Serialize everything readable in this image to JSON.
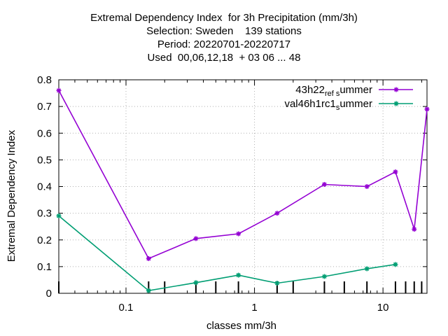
{
  "title_lines": [
    "Extremal Dependency Index  for 3h Precipitation (mm/3h)",
    "Selection: Sweden    139 stations",
    "Period: 20220701-20220717",
    "Used  00,06,12,18  + 03 06 ... 48"
  ],
  "chart_data": {
    "type": "line",
    "xlabel": "classes mm/3h",
    "ylabel": "Extremal Dependency Index",
    "xscale": "log",
    "xlim": [
      0.03,
      22
    ],
    "ylim": [
      0,
      0.8
    ],
    "xticks": [
      {
        "value": 0.1,
        "label": "0.1"
      },
      {
        "value": 1,
        "label": "1"
      },
      {
        "value": 10,
        "label": "10"
      }
    ],
    "yticks": [
      {
        "value": 0,
        "label": "0"
      },
      {
        "value": 0.1,
        "label": "0.1"
      },
      {
        "value": 0.2,
        "label": "0.2"
      },
      {
        "value": 0.3,
        "label": "0.3"
      },
      {
        "value": 0.4,
        "label": "0.4"
      },
      {
        "value": 0.5,
        "label": "0.5"
      },
      {
        "value": 0.6,
        "label": "0.6"
      },
      {
        "value": 0.7,
        "label": "0.7"
      },
      {
        "value": 0.8,
        "label": "0.8"
      }
    ],
    "class_marks": [
      0.03,
      0.15,
      0.2,
      0.35,
      0.5,
      0.75,
      1.5,
      2,
      3.5,
      5,
      7.5,
      12.5,
      15,
      17.5,
      20
    ],
    "grid": true,
    "legend_position": "top-right",
    "series": [
      {
        "name": "43h22_ref_summer",
        "legend_main": "43h22",
        "legend_parts": [
          {
            "text": "ref",
            "sub": true
          },
          {
            "text": "s",
            "sub": true
          },
          {
            "text": "ummer",
            "sub": false
          }
        ],
        "color": "#9400d3",
        "x": [
          0.03,
          0.15,
          0.35,
          0.75,
          1.5,
          3.5,
          7.5,
          12.5,
          17.5,
          22
        ],
        "y": [
          0.76,
          0.13,
          0.205,
          0.223,
          0.3,
          0.408,
          0.4,
          0.455,
          0.24,
          0.69
        ]
      },
      {
        "name": "val46h1rc1_summer",
        "legend_main": "val46h1rc1",
        "legend_parts": [
          {
            "text": "s",
            "sub": true
          },
          {
            "text": "ummer",
            "sub": false
          }
        ],
        "color": "#009e73",
        "x": [
          0.03,
          0.15,
          0.35,
          0.75,
          1.5,
          3.5,
          7.5,
          12.5
        ],
        "y": [
          0.29,
          0.01,
          0.04,
          0.068,
          0.038,
          0.063,
          0.092,
          0.108
        ]
      }
    ]
  }
}
